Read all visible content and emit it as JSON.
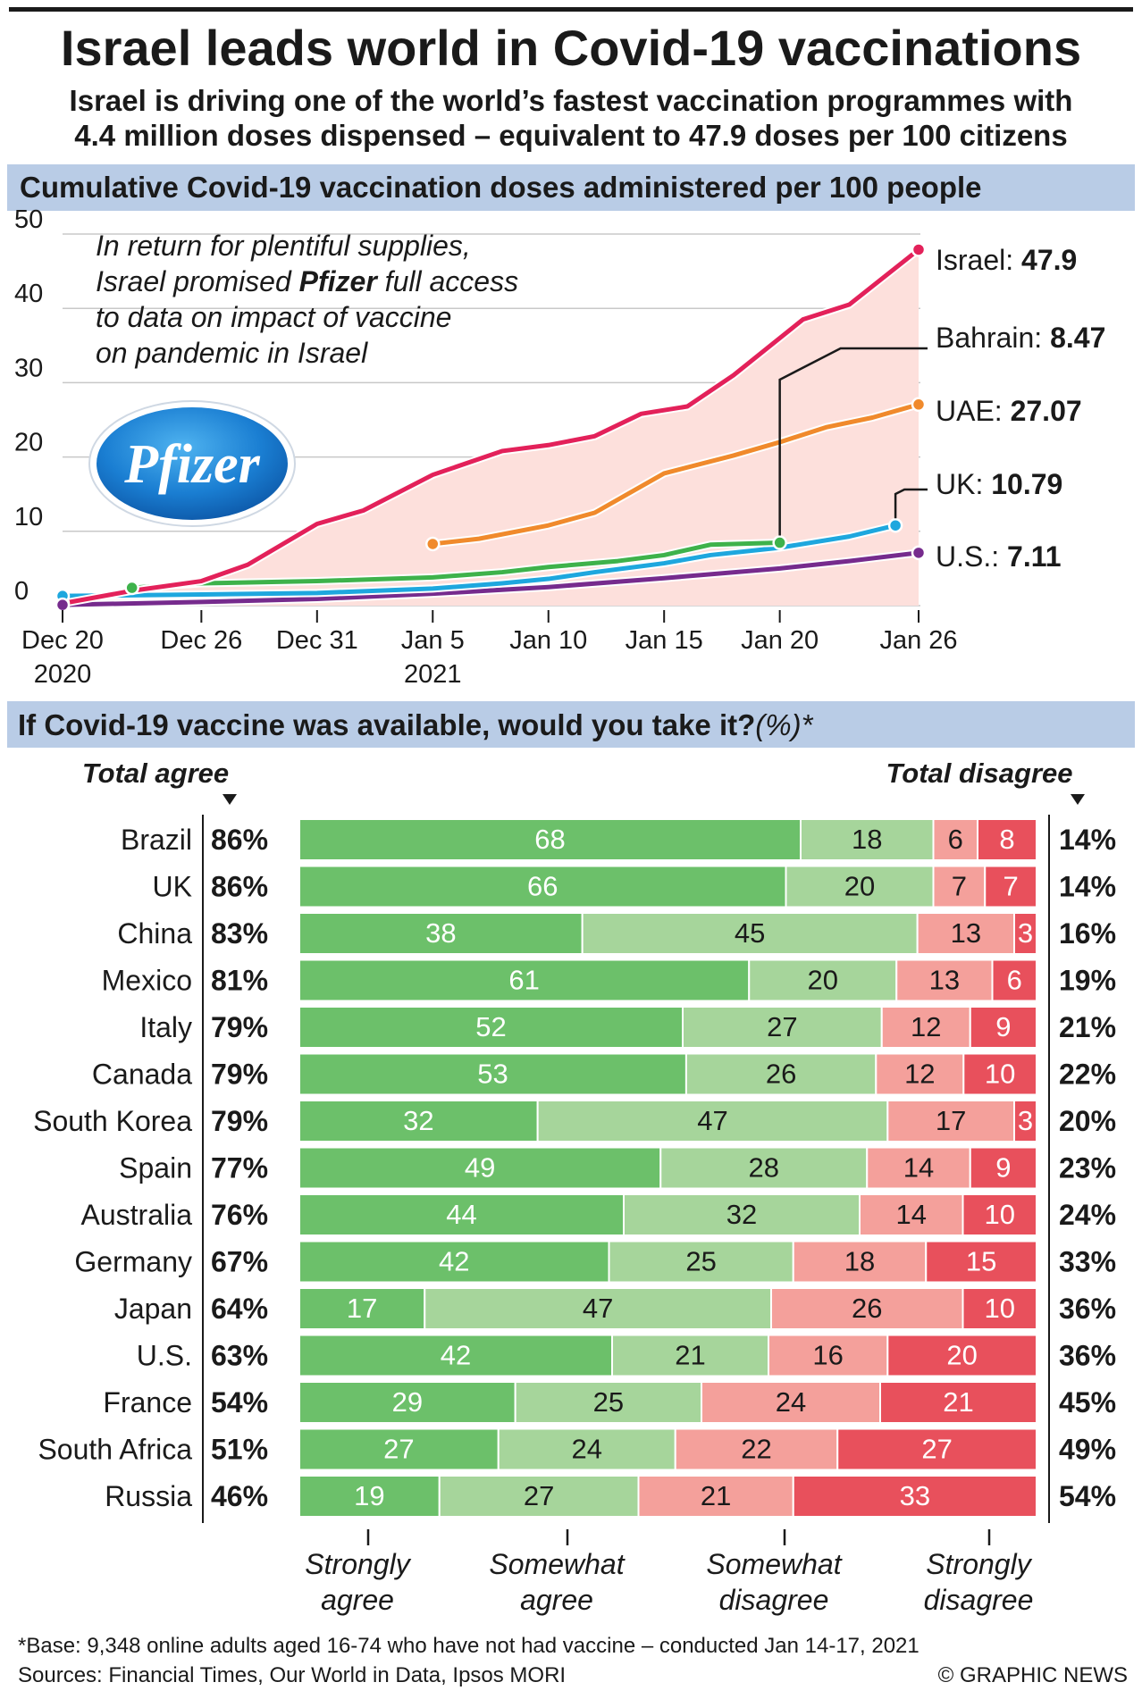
{
  "header": {
    "title": "Israel leads world in Covid-19 vaccinations",
    "subtitle_lines": [
      "Israel is driving one of the world’s fastest vaccination programmes with",
      "4.4 million doses dispensed – equivalent to 47.9 doses per 100 citizens"
    ]
  },
  "colors": {
    "israel": "#e3215a",
    "uae": "#f08a2c",
    "uk": "#1ea7de",
    "bahrain": "#3eb24b",
    "us": "#762b8d",
    "strongly_agree": "#6cc06a",
    "somewhat_agree": "#a6d59b",
    "somewhat_disagree": "#f4a09b",
    "strongly_disagree": "#e8505c",
    "section_band": "#b9cce6",
    "chart_fill": "#fde0dc"
  },
  "chart_data": [
    {
      "type": "line",
      "title": "Cumulative Covid-19 vaccination doses administered per 100 people",
      "xlabel": "",
      "ylabel": "",
      "ylim": [
        0,
        50
      ],
      "yticks": [
        0,
        10,
        20,
        30,
        40,
        50
      ],
      "grid": true,
      "x_tick_labels": [
        {
          "date": "2020-12-20",
          "lines": [
            "Dec 20",
            "2020"
          ]
        },
        {
          "date": "2020-12-26",
          "lines": [
            "Dec 26"
          ]
        },
        {
          "date": "2020-12-31",
          "lines": [
            "Dec 31"
          ]
        },
        {
          "date": "2021-01-05",
          "lines": [
            "Jan 5",
            "2021"
          ]
        },
        {
          "date": "2021-01-10",
          "lines": [
            "Jan 10"
          ]
        },
        {
          "date": "2021-01-15",
          "lines": [
            "Jan 15"
          ]
        },
        {
          "date": "2021-01-20",
          "lines": [
            "Jan 20"
          ]
        },
        {
          "date": "2021-01-26",
          "lines": [
            "Jan 26"
          ]
        }
      ],
      "annotation_lines": [
        [
          {
            "text": "In return for plentiful supplies,",
            "bold": false
          }
        ],
        [
          {
            "text": "Israel promised ",
            "bold": false
          },
          {
            "text": "Pfizer",
            "bold": true
          },
          {
            "text": " full access",
            "bold": false
          }
        ],
        [
          {
            "text": "to data on impact of vaccine",
            "bold": false
          }
        ],
        [
          {
            "text": "on pandemic in Israel",
            "bold": false
          }
        ]
      ],
      "logo_text": "Pfizer",
      "series": [
        {
          "key": "israel",
          "name": "Israel",
          "label_value": "47.9",
          "points": [
            [
              "2020-12-20",
              0.3
            ],
            [
              "2020-12-23",
              2
            ],
            [
              "2020-12-26",
              3.3
            ],
            [
              "2020-12-28",
              5.5
            ],
            [
              "2020-12-31",
              11
            ],
            [
              "2021-01-02",
              12.8
            ],
            [
              "2021-01-05",
              17.6
            ],
            [
              "2021-01-08",
              20.8
            ],
            [
              "2021-01-10",
              21.6
            ],
            [
              "2021-01-12",
              22.8
            ],
            [
              "2021-01-14",
              25.8
            ],
            [
              "2021-01-16",
              26.8
            ],
            [
              "2021-01-18",
              31
            ],
            [
              "2021-01-21",
              38.5
            ],
            [
              "2021-01-23",
              40.5
            ],
            [
              "2021-01-26",
              47.9
            ]
          ]
        },
        {
          "key": "bahrain",
          "name": "Bahrain",
          "label_value": "8.47",
          "points": [
            [
              "2020-12-23",
              2.4
            ],
            [
              "2020-12-26",
              3
            ],
            [
              "2020-12-31",
              3.3
            ],
            [
              "2021-01-05",
              3.8
            ],
            [
              "2021-01-08",
              4.5
            ],
            [
              "2021-01-10",
              5.2
            ],
            [
              "2021-01-13",
              6
            ],
            [
              "2021-01-15",
              6.8
            ],
            [
              "2021-01-17",
              8.2
            ],
            [
              "2021-01-20",
              8.47
            ]
          ]
        },
        {
          "key": "uae",
          "name": "UAE",
          "label_value": "27.07",
          "points": [
            [
              "2021-01-05",
              8.3
            ],
            [
              "2021-01-07",
              9
            ],
            [
              "2021-01-10",
              10.8
            ],
            [
              "2021-01-12",
              12.5
            ],
            [
              "2021-01-15",
              17.8
            ],
            [
              "2021-01-18",
              20.2
            ],
            [
              "2021-01-20",
              22
            ],
            [
              "2021-01-22",
              24
            ],
            [
              "2021-01-24",
              25.3
            ],
            [
              "2021-01-26",
              27.07
            ]
          ]
        },
        {
          "key": "uk",
          "name": "UK",
          "label_value": "10.79",
          "points": [
            [
              "2020-12-20",
              1.3
            ],
            [
              "2020-12-26",
              1.5
            ],
            [
              "2020-12-31",
              1.7
            ],
            [
              "2021-01-05",
              2.3
            ],
            [
              "2021-01-08",
              3
            ],
            [
              "2021-01-10",
              3.6
            ],
            [
              "2021-01-12",
              4.5
            ],
            [
              "2021-01-15",
              5.7
            ],
            [
              "2021-01-17",
              6.8
            ],
            [
              "2021-01-20",
              7.8
            ],
            [
              "2021-01-23",
              9.3
            ],
            [
              "2021-01-25",
              10.79
            ]
          ]
        },
        {
          "key": "us",
          "name": "U.S.",
          "label_value": "7.11",
          "points": [
            [
              "2020-12-20",
              0.1
            ],
            [
              "2020-12-26",
              0.5
            ],
            [
              "2020-12-31",
              0.9
            ],
            [
              "2021-01-05",
              1.6
            ],
            [
              "2021-01-10",
              2.5
            ],
            [
              "2021-01-15",
              3.7
            ],
            [
              "2021-01-20",
              5
            ],
            [
              "2021-01-23",
              6
            ],
            [
              "2021-01-26",
              7.11
            ]
          ]
        }
      ]
    },
    {
      "type": "bar",
      "stacked": true,
      "orientation": "horizontal",
      "title": "If Covid-19 vaccine was available, would you take it?",
      "title_suffix": "(%)*",
      "left_header": "Total agree",
      "right_header": "Total disagree",
      "xlabel": "",
      "ylabel": "",
      "categories": [
        "Brazil",
        "UK",
        "China",
        "Mexico",
        "Italy",
        "Canada",
        "South Korea",
        "Spain",
        "Australia",
        "Germany",
        "Japan",
        "U.S.",
        "France",
        "South Africa",
        "Russia"
      ],
      "totals_agree": [
        "86%",
        "86%",
        "83%",
        "81%",
        "79%",
        "79%",
        "79%",
        "77%",
        "76%",
        "67%",
        "64%",
        "63%",
        "54%",
        "51%",
        "46%"
      ],
      "totals_disagree": [
        "14%",
        "14%",
        "16%",
        "19%",
        "21%",
        "22%",
        "20%",
        "23%",
        "24%",
        "33%",
        "36%",
        "36%",
        "45%",
        "49%",
        "54%"
      ],
      "series": [
        {
          "key": "strongly_agree",
          "legend": [
            "Strongly",
            "agree"
          ],
          "values": [
            68,
            66,
            38,
            61,
            52,
            53,
            32,
            49,
            44,
            42,
            17,
            42,
            29,
            27,
            19
          ]
        },
        {
          "key": "somewhat_agree",
          "legend": [
            "Somewhat",
            "agree"
          ],
          "values": [
            18,
            20,
            45,
            20,
            27,
            26,
            47,
            28,
            32,
            25,
            47,
            21,
            25,
            24,
            27
          ]
        },
        {
          "key": "somewhat_disagree",
          "legend": [
            "Somewhat",
            "disagree"
          ],
          "values": [
            6,
            7,
            13,
            13,
            12,
            12,
            17,
            14,
            14,
            18,
            26,
            16,
            24,
            22,
            21
          ]
        },
        {
          "key": "strongly_disagree",
          "legend": [
            "Strongly",
            "disagree"
          ],
          "values": [
            8,
            7,
            3,
            6,
            9,
            10,
            3,
            9,
            10,
            15,
            10,
            20,
            21,
            27,
            33
          ]
        }
      ]
    }
  ],
  "footer": {
    "base_note": "*Base: 9,348 online adults aged 16-74 who have not had vaccine – conducted Jan 14-17, 2021",
    "sources": "Sources: Financial Times, Our World in Data, Ipsos MORI",
    "credit": "© GRAPHIC NEWS"
  }
}
